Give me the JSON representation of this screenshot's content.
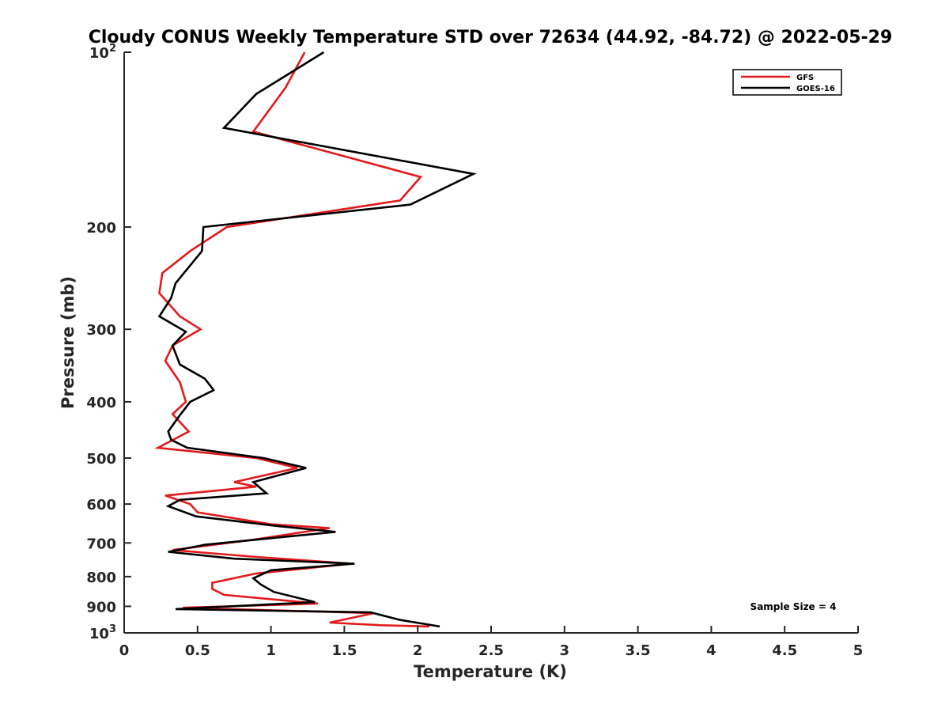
{
  "chart_data": {
    "type": "line",
    "title": "Cloudy CONUS Weekly Temperature STD over 72634 (44.92, -84.72) @ 2022-05-29",
    "xlabel": "Temperature (K)",
    "ylabel": "Pressure (mb)",
    "xlim": [
      0,
      5
    ],
    "ylim": [
      100,
      1000
    ],
    "yscale": "log",
    "y_reversed": true,
    "grid": false,
    "legend_position": "top-right",
    "x_ticks": [
      0,
      0.5,
      1,
      1.5,
      2,
      2.5,
      3,
      3.5,
      4,
      4.5,
      5
    ],
    "x_tick_labels": [
      "0",
      "0.5",
      "1",
      "1.5",
      "2",
      "2.5",
      "3",
      "3.5",
      "4",
      "4.5",
      "5"
    ],
    "y_ticks": [
      {
        "value": 100,
        "base": "10",
        "exp": "2"
      },
      {
        "value": 200,
        "label": "200"
      },
      {
        "value": 300,
        "label": "300"
      },
      {
        "value": 400,
        "label": "400"
      },
      {
        "value": 500,
        "label": "500"
      },
      {
        "value": 600,
        "label": "600"
      },
      {
        "value": 700,
        "label": "700"
      },
      {
        "value": 800,
        "label": "800"
      },
      {
        "value": 900,
        "label": "900"
      },
      {
        "value": 1000,
        "base": "10",
        "exp": "3"
      }
    ],
    "annotation": "Sample Size = 4",
    "series": [
      {
        "name": "GFS",
        "color": "#e31a1c",
        "points": [
          [
            1.23,
            100
          ],
          [
            1.1,
            115
          ],
          [
            0.88,
            137
          ],
          [
            2.02,
            164
          ],
          [
            1.88,
            180
          ],
          [
            0.7,
            200
          ],
          [
            0.45,
            220
          ],
          [
            0.26,
            240
          ],
          [
            0.24,
            260
          ],
          [
            0.38,
            285
          ],
          [
            0.52,
            300
          ],
          [
            0.33,
            320
          ],
          [
            0.28,
            340
          ],
          [
            0.38,
            370
          ],
          [
            0.42,
            400
          ],
          [
            0.33,
            420
          ],
          [
            0.44,
            450
          ],
          [
            0.23,
            480
          ],
          [
            0.9,
            500
          ],
          [
            1.18,
            520
          ],
          [
            0.75,
            550
          ],
          [
            0.9,
            560
          ],
          [
            0.28,
            580
          ],
          [
            0.45,
            600
          ],
          [
            0.5,
            620
          ],
          [
            1.0,
            650
          ],
          [
            1.4,
            660
          ],
          [
            0.9,
            690
          ],
          [
            0.33,
            720
          ],
          [
            0.9,
            740
          ],
          [
            1.55,
            760
          ],
          [
            0.9,
            790
          ],
          [
            0.6,
            820
          ],
          [
            0.6,
            840
          ],
          [
            0.68,
            860
          ],
          [
            1.32,
            890
          ],
          [
            0.4,
            905
          ],
          [
            1.7,
            925
          ],
          [
            1.4,
            960
          ],
          [
            1.75,
            970
          ],
          [
            2.08,
            975
          ]
        ]
      },
      {
        "name": "GOES-16",
        "color": "#000000",
        "points": [
          [
            1.36,
            100
          ],
          [
            0.9,
            118
          ],
          [
            0.68,
            135
          ],
          [
            2.38,
            162
          ],
          [
            1.95,
            183
          ],
          [
            0.54,
            200
          ],
          [
            0.53,
            220
          ],
          [
            0.35,
            250
          ],
          [
            0.32,
            265
          ],
          [
            0.24,
            285
          ],
          [
            0.42,
            303
          ],
          [
            0.33,
            320
          ],
          [
            0.38,
            345
          ],
          [
            0.55,
            365
          ],
          [
            0.61,
            382
          ],
          [
            0.45,
            400
          ],
          [
            0.37,
            425
          ],
          [
            0.3,
            450
          ],
          [
            0.32,
            465
          ],
          [
            0.43,
            480
          ],
          [
            0.95,
            500
          ],
          [
            1.24,
            520
          ],
          [
            0.88,
            550
          ],
          [
            0.97,
            575
          ],
          [
            0.38,
            590
          ],
          [
            0.3,
            605
          ],
          [
            0.49,
            630
          ],
          [
            1.05,
            655
          ],
          [
            1.44,
            670
          ],
          [
            0.55,
            705
          ],
          [
            0.3,
            725
          ],
          [
            0.75,
            745
          ],
          [
            1.57,
            760
          ],
          [
            1.0,
            780
          ],
          [
            0.88,
            805
          ],
          [
            0.93,
            825
          ],
          [
            1.02,
            850
          ],
          [
            1.3,
            885
          ],
          [
            0.35,
            910
          ],
          [
            1.68,
            922
          ],
          [
            1.88,
            950
          ],
          [
            2.15,
            975
          ]
        ]
      }
    ]
  }
}
